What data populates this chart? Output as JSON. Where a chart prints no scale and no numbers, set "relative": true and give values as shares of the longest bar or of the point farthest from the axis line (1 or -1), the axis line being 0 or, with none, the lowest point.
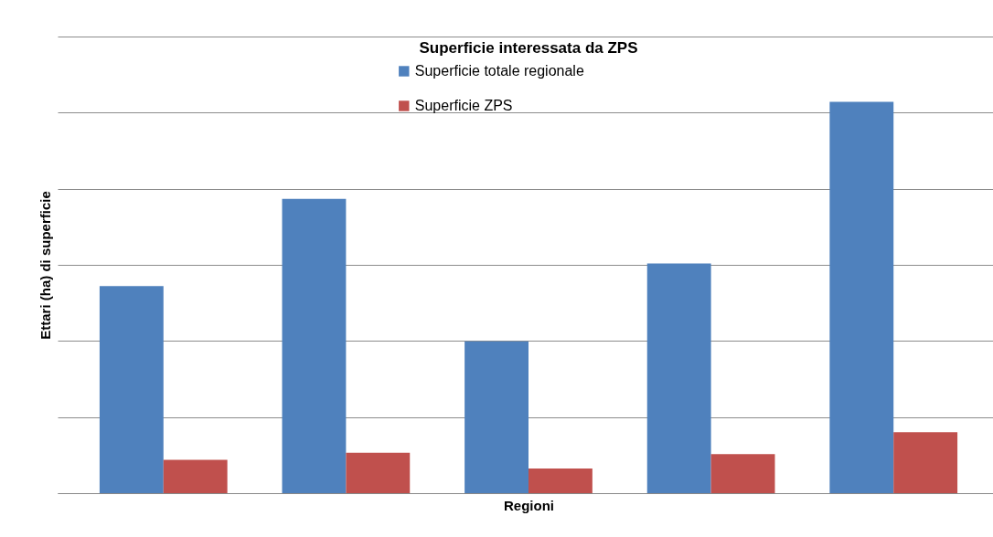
{
  "chart_data": {
    "type": "bar",
    "title": "Superficie interessata da ZPS",
    "xlabel": "Regioni",
    "ylabel": "Ettari (ha) di superficie",
    "relative": true,
    "grid": "y",
    "legend": "top",
    "categories": [
      null,
      null,
      null,
      null,
      null
    ],
    "series": [
      {
        "name": "Superficie totale regionale",
        "color": "#4f81bd",
        "values": [
          0.529,
          0.752,
          0.388,
          0.587,
          1.0
        ]
      },
      {
        "name": "Superficie ZPS",
        "color": "#c0504d",
        "values": [
          0.085,
          0.103,
          0.063,
          0.1,
          0.156
        ]
      }
    ]
  }
}
